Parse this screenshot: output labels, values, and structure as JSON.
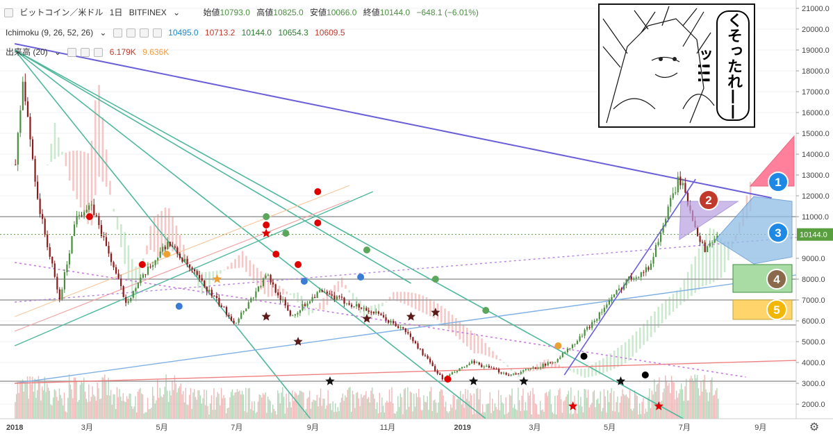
{
  "header": {
    "symbol": "ビットコイン／米ドル",
    "interval": "1日",
    "exchange": "BITFINEX",
    "open_label": "始値",
    "open": "10793.0",
    "high_label": "高値",
    "high": "10825.0",
    "low_label": "安値",
    "low": "10066.0",
    "close_label": "終値",
    "close": "10144.0",
    "change": "−648.1 (−6.01%)"
  },
  "indicators": {
    "ichimoku": {
      "name": "Ichimoku (9, 26, 52, 26)",
      "v1": "10495.0",
      "v2": "10713.2",
      "v3": "10144.0",
      "v4": "10654.3",
      "v5": "10609.5"
    },
    "volume": {
      "name": "出来高 (20)",
      "v1": "6.179K",
      "v2": "9.636K"
    }
  },
  "manga": {
    "text": "くそったれ——ッ!!!"
  },
  "price_tag": "10144.0",
  "colors": {
    "up": "#4a8f3f",
    "down": "#8b1a1a",
    "cloud_red": "#f3b9b9",
    "cloud_green": "#bfe3c4",
    "trend_blue": "#6a5fd9",
    "trend_green": "#4fb89c",
    "last_price": "#5a9f3f"
  },
  "chart_data": {
    "type": "candlestick",
    "title": "ビットコイン／米ドル · 1日 · BITFINEX",
    "y_axis_ticks": [
      21000,
      20000,
      19000,
      18000,
      17000,
      16000,
      15000,
      14000,
      13000,
      12000,
      11000,
      10000,
      9000,
      8000,
      7000,
      6000,
      5000,
      4000,
      3000,
      2000
    ],
    "x_axis_ticks": [
      "2018",
      "3月",
      "5月",
      "7月",
      "9月",
      "11月",
      "2019",
      "3月",
      "5月",
      "7月",
      "9月"
    ],
    "ylim": [
      1300,
      21400
    ],
    "close_path": [
      {
        "date": "2018-01-01",
        "price": 13500
      },
      {
        "date": "2018-01-07",
        "price": 17500
      },
      {
        "date": "2018-01-20",
        "price": 11500
      },
      {
        "date": "2018-02-06",
        "price": 7000
      },
      {
        "date": "2018-02-20",
        "price": 11200
      },
      {
        "date": "2018-03-05",
        "price": 11400
      },
      {
        "date": "2018-04-01",
        "price": 6900
      },
      {
        "date": "2018-05-05",
        "price": 9800
      },
      {
        "date": "2018-06-29",
        "price": 5900
      },
      {
        "date": "2018-07-25",
        "price": 8200
      },
      {
        "date": "2018-08-14",
        "price": 6200
      },
      {
        "date": "2018-09-05",
        "price": 7400
      },
      {
        "date": "2018-10-20",
        "price": 6400
      },
      {
        "date": "2018-11-15",
        "price": 5500
      },
      {
        "date": "2018-12-15",
        "price": 3200
      },
      {
        "date": "2019-01-08",
        "price": 4000
      },
      {
        "date": "2019-02-08",
        "price": 3400
      },
      {
        "date": "2019-03-15",
        "price": 4000
      },
      {
        "date": "2019-04-02",
        "price": 4900
      },
      {
        "date": "2019-05-15",
        "price": 8000
      },
      {
        "date": "2019-06-01",
        "price": 8500
      },
      {
        "date": "2019-06-26",
        "price": 12900
      },
      {
        "date": "2019-07-16",
        "price": 9400
      },
      {
        "date": "2019-07-28",
        "price": 10144
      }
    ],
    "horizontal_levels": [
      11000,
      8000,
      7000,
      5800,
      3100
    ],
    "annotations": [
      {
        "type": "triangle",
        "label": "1",
        "color": "#e8506e"
      },
      {
        "type": "triangle",
        "label": "2",
        "color": "#a58bd6"
      },
      {
        "type": "hexagon",
        "label": "3",
        "color": "#7fb2e0"
      },
      {
        "type": "box",
        "label": "4",
        "color": "#9fd49a"
      },
      {
        "type": "box",
        "label": "5",
        "color": "#ffd46b"
      }
    ]
  }
}
